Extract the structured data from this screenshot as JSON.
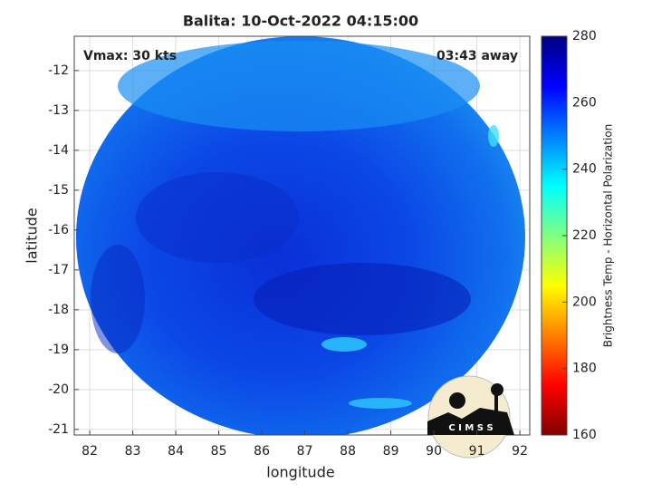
{
  "chart_data": {
    "type": "heatmap",
    "title": "Balita: 10-Oct-2022 04:15:00",
    "annotations": [
      "Vmax: 30 kts",
      "03:43 away"
    ],
    "x_label": "longitude",
    "y_label": "latitude",
    "xlim": [
      81.64,
      92.23
    ],
    "xticks": [
      82,
      83,
      84,
      85,
      86,
      87,
      88,
      89,
      90,
      91,
      92
    ],
    "ylim": [
      -21.14,
      -11.14
    ],
    "yticks": [
      -21,
      -20,
      -19,
      -18,
      -17,
      -16,
      -15,
      -14,
      -13,
      -12
    ],
    "grid": true,
    "colorbar": {
      "label": "Brightness Temp - Horizontal Polarization",
      "colormap": "jet",
      "lim": [
        160,
        280
      ],
      "ticks": [
        160,
        180,
        200,
        220,
        240,
        260,
        280
      ]
    },
    "logo_text": "C I M S S"
  }
}
